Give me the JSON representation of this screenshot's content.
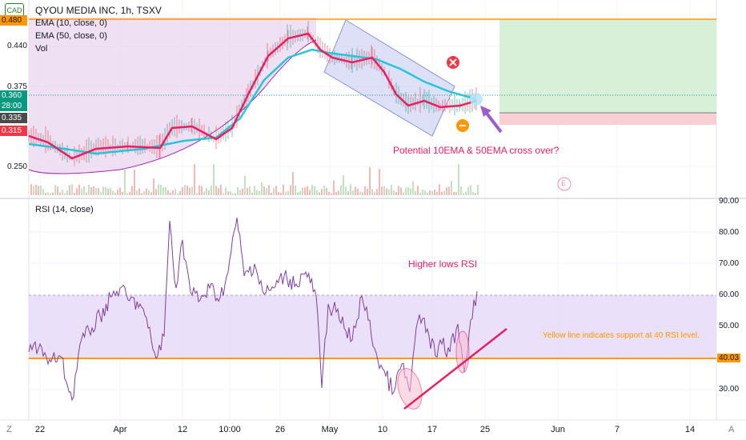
{
  "header": {
    "currency_badge": "CAD",
    "title": "QYOU MEDIA INC, 1h, TSXV",
    "indicators": [
      "EMA (10, close, 0)",
      "EMA (50, close, 0)",
      "Vol"
    ]
  },
  "rsi_panel": {
    "title": "RSI (14, close)",
    "current_value_tag": "40.03"
  },
  "price_axis": {
    "labels": [
      "0.440",
      "0.375",
      "0.250"
    ],
    "tags": [
      {
        "text": "0.480",
        "color": "#ff9800",
        "text_color": "#131722"
      },
      {
        "text": "0.360",
        "color": "#089981",
        "text_color": "#ffffff"
      },
      {
        "text": "28:00",
        "color": "#089981",
        "text_color": "#ffffff"
      },
      {
        "text": "0.335",
        "color": "#4a4a4a",
        "text_color": "#ffffff"
      },
      {
        "text": "0.315",
        "color": "#f23645",
        "text_color": "#ffffff"
      }
    ]
  },
  "rsi_axis": {
    "labels": [
      "90.00",
      "80.00",
      "70.00",
      "60.00",
      "50.00",
      "30.00"
    ]
  },
  "time_axis": {
    "labels": [
      "22",
      "Apr",
      "12",
      "10:00",
      "26",
      "May",
      "10",
      "17",
      "25",
      "Jun",
      "7",
      "14"
    ]
  },
  "annotations": {
    "ema_cross": "Potential 10EMA & 50EMA cross over?",
    "higher_lows": "Higher lows RSI",
    "support_note": "Yellow line indicates support at 40 RSI level.",
    "earnings_marker": "E"
  },
  "bottom_bar": {
    "left_icon_text": "Z",
    "right_icon_text": "A"
  },
  "colors": {
    "ema10": "#e91e63",
    "ema50": "#26c6da",
    "rsi_line": "#7e3fa0",
    "rsi_band": "#e6d8f7",
    "support_line": "#ff9800",
    "trend_line": "#e91e63",
    "tp_zone": "#d8f0d8",
    "sl_zone": "#f8d0d4",
    "annotation_pink": "#e91e63",
    "annotation_orange": "#ff9800"
  }
}
